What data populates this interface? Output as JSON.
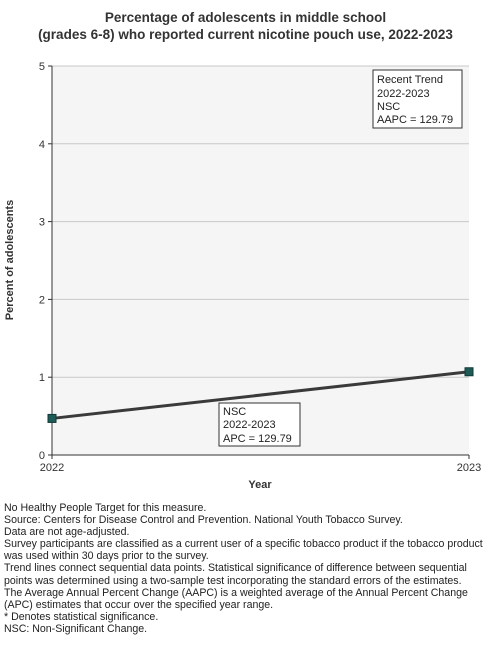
{
  "chart_data": {
    "type": "line",
    "title_lines": [
      "Percentage of adolescents in middle school",
      "(grades 6-8) who reported current nicotine pouch use, 2022-2023"
    ],
    "xlabel": "Year",
    "ylabel": "Percent of adolescents",
    "x_ticks": [
      "2022",
      "2023"
    ],
    "y_ticks": [
      "0",
      "1",
      "2",
      "3",
      "4",
      "5"
    ],
    "ylim": [
      0,
      5
    ],
    "grid": true,
    "series": [
      {
        "x": [
          "2022",
          "2023"
        ],
        "values": [
          0.47,
          1.07
        ],
        "color": "#3a3a3a",
        "marker_color": "#1f5b56"
      }
    ],
    "annotations": {
      "recent_trend": [
        "Recent Trend",
        "2022-2023",
        "NSC",
        "AAPC = 129.79"
      ],
      "segment": [
        "NSC",
        "2022-2023",
        "APC = 129.79"
      ]
    }
  },
  "notes": [
    "No Healthy People Target for this measure.",
    "Source: Centers for Disease Control and Prevention. National Youth Tobacco Survey.",
    "Data are not age-adjusted.",
    "Survey participants are classified as a current user of a specific tobacco product if the tobacco product was used within 30 days prior to the survey.",
    "Trend lines connect sequential data points. Statistical significance of difference between sequential points was determined using a two-sample test incorporating the standard errors of the estimates.",
    "The Average Annual Percent Change (AAPC) is a weighted average of the Annual Percent Change (APC) estimates that occur over the specified year range.",
    "* Denotes statistical significance.",
    "NSC: Non-Significant Change."
  ],
  "colors": {
    "plot_bg": "#f5f5f5",
    "grid": "#c8c8c8",
    "axis": "#333333"
  }
}
